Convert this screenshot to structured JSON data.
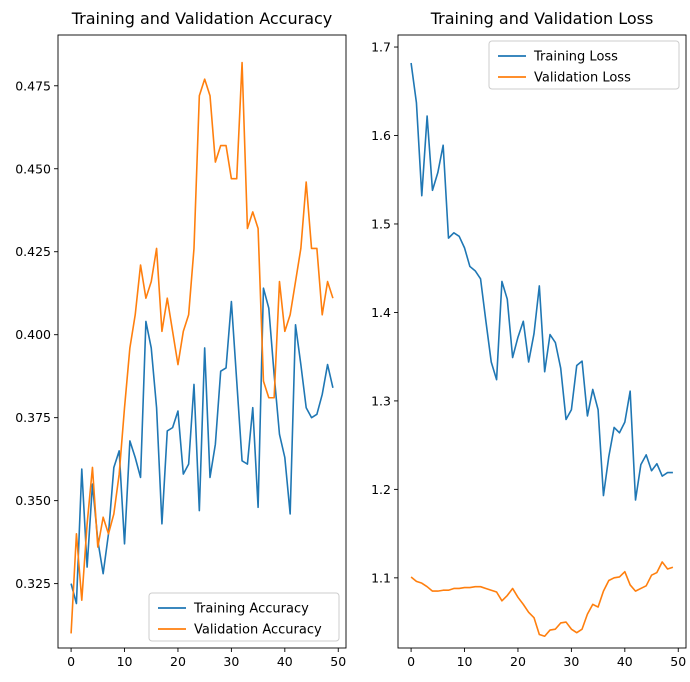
{
  "chart_data": [
    {
      "type": "line",
      "title": "Training and Validation Accuracy",
      "xlabel": "",
      "ylabel": "",
      "xlim": [
        -2.45,
        51.45
      ],
      "ylim": [
        0.3056,
        0.4903
      ],
      "xticks": [
        0,
        10,
        20,
        30,
        40,
        50
      ],
      "yticks": [
        0.325,
        0.35,
        0.375,
        0.4,
        0.425,
        0.45,
        0.475
      ],
      "ytick_labels": [
        "0.325",
        "0.350",
        "0.375",
        "0.400",
        "0.425",
        "0.450",
        "0.475"
      ],
      "grid": false,
      "legend_position": "lower-right",
      "x": [
        0,
        1,
        2,
        3,
        4,
        5,
        6,
        7,
        8,
        9,
        10,
        11,
        12,
        13,
        14,
        15,
        16,
        17,
        18,
        19,
        20,
        21,
        22,
        23,
        24,
        25,
        26,
        27,
        28,
        29,
        30,
        31,
        32,
        33,
        34,
        35,
        36,
        37,
        38,
        39,
        40,
        41,
        42,
        43,
        44,
        45,
        46,
        47,
        48,
        49
      ],
      "series": [
        {
          "name": "Training Accuracy",
          "color": "#1f77b4",
          "values": [
            0.325,
            0.319,
            0.3595,
            0.33,
            0.355,
            0.338,
            0.328,
            0.34,
            0.36,
            0.365,
            0.337,
            0.368,
            0.363,
            0.357,
            0.404,
            0.396,
            0.378,
            0.343,
            0.371,
            0.372,
            0.377,
            0.358,
            0.361,
            0.385,
            0.347,
            0.396,
            0.357,
            0.367,
            0.389,
            0.39,
            0.41,
            0.386,
            0.362,
            0.361,
            0.378,
            0.348,
            0.414,
            0.408,
            0.388,
            0.37,
            0.363,
            0.346,
            0.403,
            0.391,
            0.378,
            0.375,
            0.376,
            0.382,
            0.391,
            0.384
          ]
        },
        {
          "name": "Validation Accuracy",
          "color": "#ff7f0e",
          "values": [
            0.31,
            0.34,
            0.32,
            0.343,
            0.36,
            0.336,
            0.345,
            0.34,
            0.346,
            0.358,
            0.378,
            0.396,
            0.406,
            0.421,
            0.411,
            0.416,
            0.426,
            0.401,
            0.411,
            0.401,
            0.391,
            0.401,
            0.406,
            0.426,
            0.472,
            0.477,
            0.472,
            0.452,
            0.457,
            0.457,
            0.447,
            0.447,
            0.482,
            0.432,
            0.437,
            0.432,
            0.386,
            0.381,
            0.381,
            0.416,
            0.401,
            0.406,
            0.416,
            0.426,
            0.446,
            0.426,
            0.426,
            0.406,
            0.416,
            0.411
          ]
        }
      ]
    },
    {
      "type": "line",
      "title": "Training and Validation Loss",
      "xlabel": "",
      "ylabel": "",
      "xlim": [
        -2.45,
        51.45
      ],
      "ylim": [
        1.0207,
        1.7136
      ],
      "xticks": [
        0,
        10,
        20,
        30,
        40,
        50
      ],
      "yticks": [
        1.1,
        1.2,
        1.3,
        1.4,
        1.5,
        1.6,
        1.7
      ],
      "ytick_labels": [
        "1.1",
        "1.2",
        "1.3",
        "1.4",
        "1.5",
        "1.6",
        "1.7"
      ],
      "grid": false,
      "legend_position": "upper-right",
      "x": [
        0,
        1,
        2,
        3,
        4,
        5,
        6,
        7,
        8,
        9,
        10,
        11,
        12,
        13,
        14,
        15,
        16,
        17,
        18,
        19,
        20,
        21,
        22,
        23,
        24,
        25,
        26,
        27,
        28,
        29,
        30,
        31,
        32,
        33,
        34,
        35,
        36,
        37,
        38,
        39,
        40,
        41,
        42,
        43,
        44,
        45,
        46,
        47,
        48,
        49
      ],
      "series": [
        {
          "name": "Training Loss",
          "color": "#1f77b4",
          "values": [
            1.682,
            1.637,
            1.532,
            1.622,
            1.538,
            1.558,
            1.589,
            1.484,
            1.49,
            1.486,
            1.473,
            1.452,
            1.447,
            1.438,
            1.39,
            1.344,
            1.324,
            1.435,
            1.415,
            1.349,
            1.372,
            1.39,
            1.344,
            1.376,
            1.43,
            1.333,
            1.375,
            1.366,
            1.337,
            1.279,
            1.29,
            1.34,
            1.345,
            1.283,
            1.313,
            1.29,
            1.193,
            1.237,
            1.27,
            1.264,
            1.276,
            1.311,
            1.188,
            1.228,
            1.239,
            1.221,
            1.229,
            1.215,
            1.219,
            1.219
          ]
        },
        {
          "name": "Validation Loss",
          "color": "#ff7f0e",
          "values": [
            1.101,
            1.096,
            1.094,
            1.09,
            1.085,
            1.085,
            1.086,
            1.086,
            1.088,
            1.088,
            1.089,
            1.089,
            1.09,
            1.09,
            1.088,
            1.086,
            1.084,
            1.074,
            1.08,
            1.088,
            1.078,
            1.07,
            1.061,
            1.055,
            1.036,
            1.034,
            1.041,
            1.042,
            1.049,
            1.05,
            1.042,
            1.038,
            1.042,
            1.059,
            1.07,
            1.067,
            1.085,
            1.097,
            1.1,
            1.101,
            1.107,
            1.092,
            1.085,
            1.088,
            1.091,
            1.103,
            1.106,
            1.118,
            1.11,
            1.112
          ]
        }
      ]
    }
  ]
}
